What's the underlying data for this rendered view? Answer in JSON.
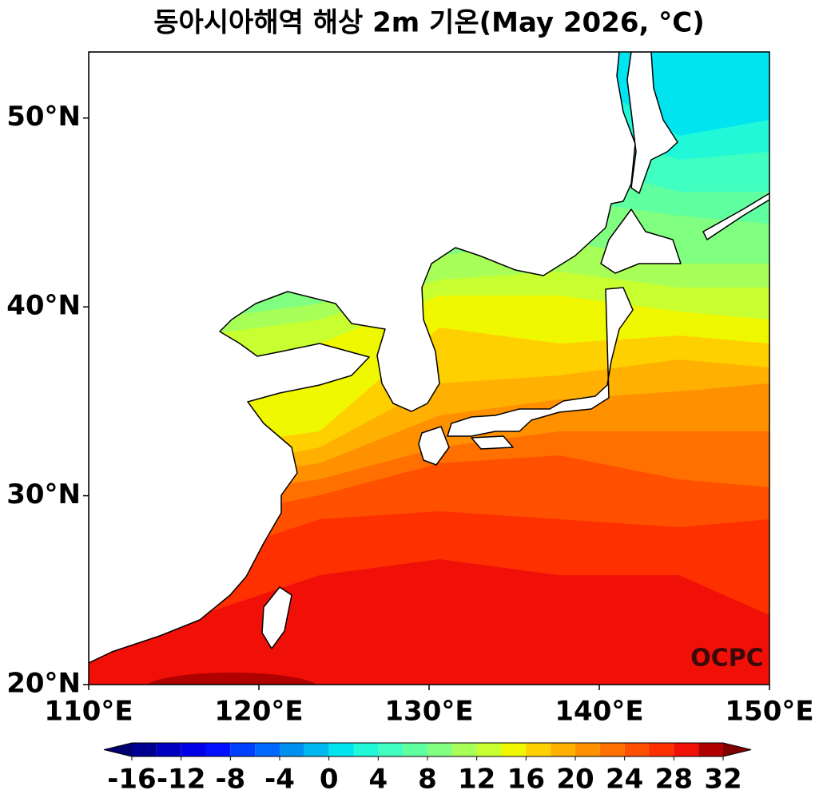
{
  "title": "동아시아해역 해상 2m 기온(May 2026, °C)",
  "credit": "OCPC",
  "map": {
    "xlim": [
      110,
      150
    ],
    "ylim": [
      20,
      53.5
    ],
    "xticks": [
      {
        "value": 110,
        "label": "110°E"
      },
      {
        "value": 120,
        "label": "120°E"
      },
      {
        "value": 130,
        "label": "130°E"
      },
      {
        "value": 140,
        "label": "140°E"
      },
      {
        "value": 150,
        "label": "150°E"
      }
    ],
    "yticks": [
      {
        "value": 20,
        "label": "20°N"
      },
      {
        "value": 30,
        "label": "30°N"
      },
      {
        "value": 40,
        "label": "40°N"
      },
      {
        "value": 50,
        "label": "50°N"
      }
    ]
  },
  "colorbar": {
    "levels": [
      -16,
      -14,
      -12,
      -10,
      -8,
      -6,
      -4,
      -2,
      0,
      2,
      4,
      6,
      8,
      10,
      12,
      14,
      16,
      18,
      20,
      22,
      24,
      26,
      28,
      30,
      32
    ],
    "colors": [
      "#000090",
      "#0000c0",
      "#0000e8",
      "#0010ff",
      "#0040ff",
      "#0068ff",
      "#0090f0",
      "#00b8f0",
      "#00e4f0",
      "#20f8d8",
      "#40ffc0",
      "#60ffa0",
      "#80ff80",
      "#a8ff58",
      "#c8ff30",
      "#f0f800",
      "#ffd000",
      "#ffb000",
      "#ff9000",
      "#ff7000",
      "#ff5000",
      "#ff3000",
      "#f01008",
      "#b00000"
    ],
    "extend_colors": [
      "#000070",
      "#800000"
    ],
    "ticks": [
      -16,
      -12,
      -8,
      -4,
      0,
      4,
      8,
      12,
      16,
      20,
      24,
      28,
      32
    ]
  }
}
